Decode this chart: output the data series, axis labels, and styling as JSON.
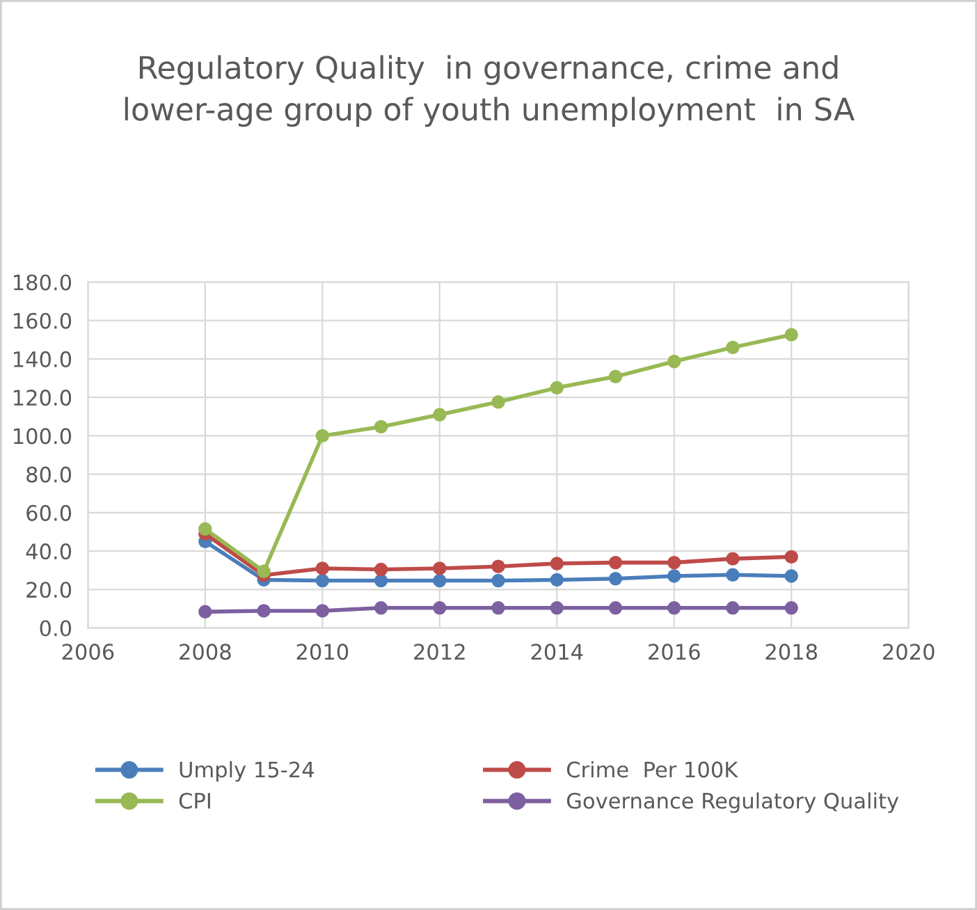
{
  "chart_data": {
    "type": "line",
    "title": "Regulatory Quality  in governance, crime and\nlower-age group of youth unemployment  in SA",
    "x": [
      2008,
      2009,
      2010,
      2011,
      2012,
      2013,
      2014,
      2015,
      2016,
      2017,
      2018
    ],
    "series": [
      {
        "name": "Umply 15-24",
        "color": "#4a7ebb",
        "values": [
          45.0,
          25.0,
          24.6,
          24.6,
          24.6,
          24.6,
          25.0,
          25.6,
          27.0,
          27.6,
          27.0
        ]
      },
      {
        "name": "Crime  Per 100K",
        "color": "#be4b48",
        "values": [
          49.0,
          27.4,
          31.0,
          30.4,
          31.0,
          32.0,
          33.5,
          34.0,
          34.0,
          36.0,
          37.0
        ]
      },
      {
        "name": "CPI",
        "color": "#98b954",
        "values": [
          51.5,
          29.4,
          100.0,
          104.7,
          111.0,
          117.6,
          125.0,
          130.8,
          138.7,
          146.0,
          152.6
        ]
      },
      {
        "name": "Governance Regulatory Quality",
        "color": "#7d60a0",
        "values": [
          8.4,
          8.9,
          8.9,
          10.4,
          10.4,
          10.4,
          10.4,
          10.4,
          10.4,
          10.4,
          10.4
        ]
      }
    ],
    "xlim": [
      2006,
      2020
    ],
    "xticks": [
      2006,
      2008,
      2010,
      2012,
      2014,
      2016,
      2018,
      2020
    ],
    "ylim": [
      0,
      180
    ],
    "yticks": [
      {
        "value": 0,
        "label": "0.0"
      },
      {
        "value": 20,
        "label": "20.0"
      },
      {
        "value": 40,
        "label": "40.0"
      },
      {
        "value": 60,
        "label": "60.0"
      },
      {
        "value": 80,
        "label": "80.0"
      },
      {
        "value": 100,
        "label": "100.0"
      },
      {
        "value": 120,
        "label": "120.0"
      },
      {
        "value": 140,
        "label": "140.0"
      },
      {
        "value": 160,
        "label": "160.0"
      },
      {
        "value": 180,
        "label": "180.0"
      }
    ],
    "grid": true,
    "legend": "bottom",
    "marker": "circle",
    "line_style": "solid"
  }
}
